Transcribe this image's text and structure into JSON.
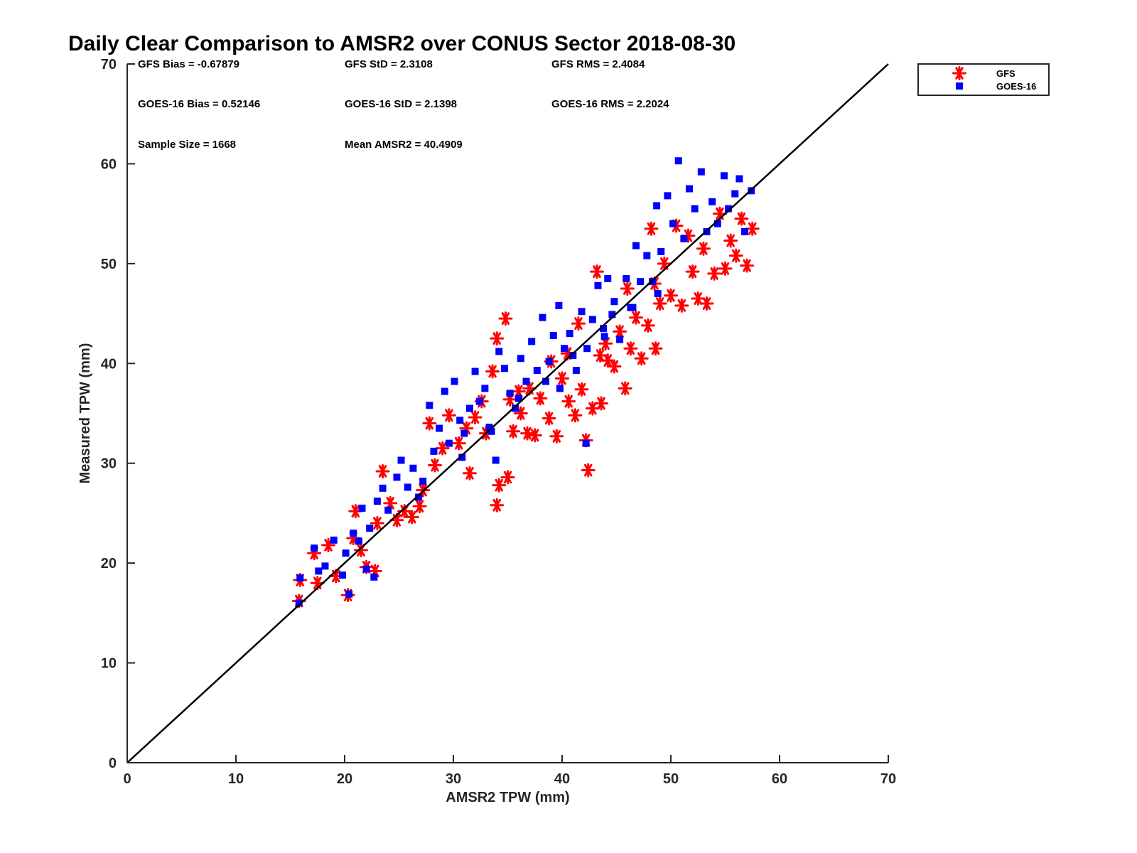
{
  "chart_data": {
    "type": "scatter",
    "title": "Daily Clear Comparison to AMSR2 over CONUS Sector 2018-08-30",
    "xlabel": "AMSR2 TPW (mm)",
    "ylabel": "Measured TPW (mm)",
    "xlim": [
      0,
      70
    ],
    "ylim": [
      0,
      70
    ],
    "xticks": [
      "0",
      "10",
      "20",
      "30",
      "40",
      "50",
      "60",
      "70"
    ],
    "yticks": [
      "0",
      "10",
      "20",
      "30",
      "40",
      "50",
      "60",
      "70"
    ],
    "grid": false,
    "legend_position": "outside-top-right",
    "reference_line": {
      "from": [
        0,
        0
      ],
      "to": [
        70,
        70
      ],
      "color": "#000000"
    },
    "stats": {
      "gfs_bias": "GFS Bias = -0.67879",
      "gfs_std": "GFS StD = 2.3108",
      "gfs_rms": "GFS RMS = 2.4084",
      "goes_bias": "GOES-16 Bias = 0.52146",
      "goes_std": "GOES-16 StD = 2.1398",
      "goes_rms": "GOES-16 RMS = 2.2024",
      "sample_size": "Sample Size = 1668",
      "mean_amsr2": "Mean AMSR2 = 40.4909"
    },
    "series": [
      {
        "name": "GFS",
        "marker": "asterisk",
        "color": "#ff0000",
        "points": [
          [
            15.8,
            16.2
          ],
          [
            15.9,
            18.3
          ],
          [
            17.2,
            21.0
          ],
          [
            17.5,
            18.0
          ],
          [
            18.5,
            21.8
          ],
          [
            19.2,
            18.7
          ],
          [
            20.3,
            16.8
          ],
          [
            20.8,
            22.5
          ],
          [
            21.0,
            25.2
          ],
          [
            21.5,
            21.3
          ],
          [
            22.0,
            19.6
          ],
          [
            22.8,
            19.2
          ],
          [
            23.0,
            24.0
          ],
          [
            23.5,
            29.2
          ],
          [
            24.2,
            26.0
          ],
          [
            24.8,
            24.3
          ],
          [
            25.5,
            25.2
          ],
          [
            26.2,
            24.6
          ],
          [
            26.9,
            25.7
          ],
          [
            27.2,
            27.3
          ],
          [
            27.8,
            34.0
          ],
          [
            28.3,
            29.8
          ],
          [
            29.0,
            31.5
          ],
          [
            29.6,
            34.8
          ],
          [
            30.5,
            32.0
          ],
          [
            31.2,
            33.5
          ],
          [
            31.5,
            29.0
          ],
          [
            32.0,
            34.6
          ],
          [
            32.6,
            36.2
          ],
          [
            33.0,
            33.0
          ],
          [
            33.6,
            39.2
          ],
          [
            34.0,
            42.5
          ],
          [
            34.0,
            25.8
          ],
          [
            34.2,
            27.8
          ],
          [
            34.8,
            44.5
          ],
          [
            35.0,
            28.6
          ],
          [
            35.5,
            33.2
          ],
          [
            36.2,
            35.0
          ],
          [
            36.8,
            33.0
          ],
          [
            37.5,
            32.8
          ],
          [
            38.0,
            36.5
          ],
          [
            38.8,
            34.5
          ],
          [
            39.5,
            32.7
          ],
          [
            40.0,
            38.5
          ],
          [
            40.6,
            36.2
          ],
          [
            41.2,
            34.8
          ],
          [
            41.8,
            37.4
          ],
          [
            42.2,
            32.3
          ],
          [
            42.4,
            29.3
          ],
          [
            42.8,
            35.5
          ],
          [
            43.2,
            49.2
          ],
          [
            43.6,
            36.0
          ],
          [
            44.2,
            40.3
          ],
          [
            44.8,
            39.7
          ],
          [
            45.3,
            43.2
          ],
          [
            45.8,
            37.5
          ],
          [
            46.3,
            41.5
          ],
          [
            46.8,
            44.6
          ],
          [
            47.3,
            40.5
          ],
          [
            47.9,
            43.8
          ],
          [
            48.2,
            53.5
          ],
          [
            48.6,
            41.5
          ],
          [
            49.0,
            46.0
          ],
          [
            49.4,
            50.0
          ],
          [
            50.0,
            46.8
          ],
          [
            50.5,
            53.8
          ],
          [
            51.0,
            45.8
          ],
          [
            51.6,
            52.8
          ],
          [
            52.0,
            49.2
          ],
          [
            52.5,
            46.5
          ],
          [
            53.0,
            51.5
          ],
          [
            53.3,
            46.0
          ],
          [
            54.0,
            49.0
          ],
          [
            54.5,
            55.0
          ],
          [
            55.0,
            49.5
          ],
          [
            55.5,
            52.3
          ],
          [
            56.0,
            50.8
          ],
          [
            56.5,
            54.5
          ],
          [
            57.0,
            49.8
          ],
          [
            57.5,
            53.5
          ],
          [
            44.0,
            42.0
          ],
          [
            43.5,
            40.8
          ],
          [
            40.5,
            41.0
          ],
          [
            39.0,
            40.2
          ],
          [
            37.0,
            37.5
          ],
          [
            36.0,
            37.2
          ],
          [
            41.5,
            44.0
          ],
          [
            46.0,
            47.5
          ],
          [
            48.5,
            48.0
          ],
          [
            35.2,
            36.4
          ]
        ]
      },
      {
        "name": "GOES-16",
        "marker": "square",
        "color": "#0000ff",
        "points": [
          [
            15.8,
            16.0
          ],
          [
            15.9,
            18.5
          ],
          [
            17.2,
            21.5
          ],
          [
            17.6,
            19.2
          ],
          [
            18.2,
            19.7
          ],
          [
            19.0,
            22.3
          ],
          [
            19.8,
            18.8
          ],
          [
            20.1,
            21.0
          ],
          [
            20.4,
            16.9
          ],
          [
            20.8,
            23.0
          ],
          [
            21.3,
            22.2
          ],
          [
            21.6,
            25.5
          ],
          [
            22.0,
            19.4
          ],
          [
            22.3,
            23.5
          ],
          [
            22.7,
            18.6
          ],
          [
            23.0,
            26.2
          ],
          [
            23.5,
            27.5
          ],
          [
            24.0,
            25.3
          ],
          [
            24.8,
            28.6
          ],
          [
            25.2,
            30.3
          ],
          [
            25.8,
            27.6
          ],
          [
            26.3,
            29.5
          ],
          [
            26.8,
            26.6
          ],
          [
            27.2,
            28.2
          ],
          [
            27.8,
            35.8
          ],
          [
            28.2,
            31.2
          ],
          [
            28.7,
            33.5
          ],
          [
            29.2,
            37.2
          ],
          [
            29.6,
            32.0
          ],
          [
            30.1,
            38.2
          ],
          [
            30.6,
            34.3
          ],
          [
            31.0,
            33.0
          ],
          [
            31.5,
            35.5
          ],
          [
            32.0,
            39.2
          ],
          [
            32.4,
            36.2
          ],
          [
            32.9,
            37.5
          ],
          [
            33.3,
            33.6
          ],
          [
            33.9,
            30.3
          ],
          [
            34.2,
            41.2
          ],
          [
            34.7,
            39.5
          ],
          [
            35.2,
            37.0
          ],
          [
            35.7,
            35.5
          ],
          [
            36.2,
            40.5
          ],
          [
            36.7,
            38.2
          ],
          [
            37.2,
            42.2
          ],
          [
            37.7,
            39.3
          ],
          [
            38.2,
            44.6
          ],
          [
            38.8,
            40.2
          ],
          [
            39.2,
            42.8
          ],
          [
            39.7,
            45.8
          ],
          [
            40.2,
            41.5
          ],
          [
            40.7,
            43.0
          ],
          [
            41.3,
            39.3
          ],
          [
            41.8,
            45.2
          ],
          [
            42.2,
            32.0
          ],
          [
            42.3,
            41.5
          ],
          [
            42.8,
            44.4
          ],
          [
            43.3,
            47.8
          ],
          [
            43.9,
            42.7
          ],
          [
            44.2,
            48.5
          ],
          [
            44.8,
            46.2
          ],
          [
            45.3,
            42.4
          ],
          [
            45.9,
            48.5
          ],
          [
            46.3,
            45.6
          ],
          [
            46.8,
            51.8
          ],
          [
            47.2,
            48.2
          ],
          [
            47.8,
            50.8
          ],
          [
            48.3,
            48.2
          ],
          [
            48.7,
            55.8
          ],
          [
            49.1,
            51.2
          ],
          [
            49.7,
            56.8
          ],
          [
            50.2,
            54.0
          ],
          [
            50.7,
            60.3
          ],
          [
            51.2,
            52.5
          ],
          [
            51.7,
            57.5
          ],
          [
            52.2,
            55.5
          ],
          [
            52.8,
            59.2
          ],
          [
            53.3,
            53.2
          ],
          [
            53.8,
            56.2
          ],
          [
            54.3,
            54.0
          ],
          [
            54.9,
            58.8
          ],
          [
            55.3,
            55.5
          ],
          [
            55.9,
            57.0
          ],
          [
            56.3,
            58.5
          ],
          [
            56.8,
            53.2
          ],
          [
            57.4,
            57.3
          ],
          [
            43.8,
            43.5
          ],
          [
            41.0,
            40.8
          ],
          [
            38.5,
            38.2
          ],
          [
            36.0,
            36.5
          ],
          [
            46.5,
            45.6
          ],
          [
            48.8,
            47.0
          ],
          [
            33.5,
            33.2
          ],
          [
            30.8,
            30.6
          ],
          [
            39.8,
            37.5
          ],
          [
            44.6,
            44.9
          ]
        ]
      }
    ]
  }
}
